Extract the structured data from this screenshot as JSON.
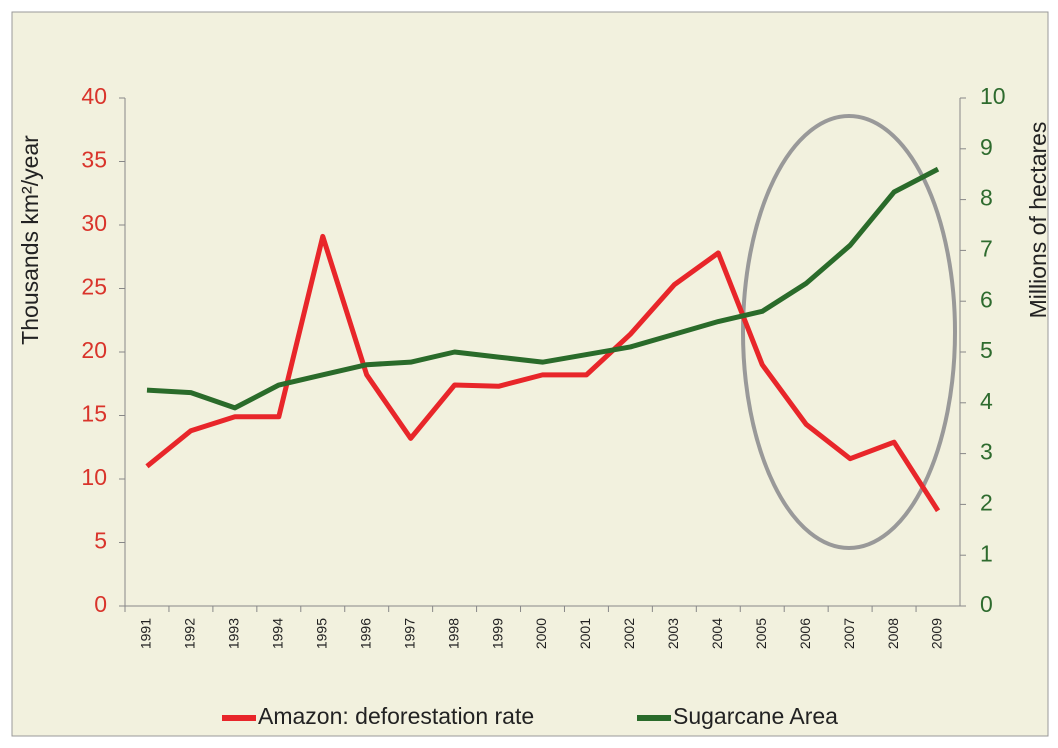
{
  "chart_data": {
    "type": "line",
    "y_label": "Thousands km²/year",
    "y2_label": "Millions of hectares",
    "categories": [
      "1991",
      "1992",
      "1993",
      "1994",
      "1995",
      "1996",
      "1997",
      "1998",
      "1999",
      "2000",
      "2001",
      "2002",
      "2003",
      "2004",
      "2005",
      "2006",
      "2007",
      "2008",
      "2009"
    ],
    "series": [
      {
        "name": "Amazon: deforestation rate",
        "color": "#e8262a",
        "axis": "y",
        "values": [
          11.0,
          13.8,
          14.9,
          14.9,
          29.1,
          18.2,
          13.2,
          17.4,
          17.3,
          18.2,
          18.2,
          21.4,
          25.3,
          27.8,
          19.0,
          14.3,
          11.6,
          12.9,
          7.5
        ]
      },
      {
        "name": "Sugarcane Area",
        "color": "#2a6b2a",
        "axis": "y2",
        "values": [
          4.25,
          4.2,
          3.9,
          4.35,
          4.55,
          4.75,
          4.8,
          5.0,
          4.9,
          4.8,
          4.95,
          5.1,
          5.35,
          5.6,
          5.8,
          6.35,
          7.1,
          8.15,
          8.6
        ]
      }
    ],
    "ylim": [
      0,
      40
    ],
    "yticks": [
      0,
      5,
      10,
      15,
      20,
      25,
      30,
      35,
      40
    ],
    "y_tick_color": "#d9342b",
    "y2lim": [
      0,
      10
    ],
    "y2ticks": [
      0,
      1,
      2,
      3,
      4,
      5,
      6,
      7,
      8,
      9,
      10
    ],
    "y2_tick_color": "#2e6b2e",
    "grid": false,
    "legend": "bottom"
  }
}
